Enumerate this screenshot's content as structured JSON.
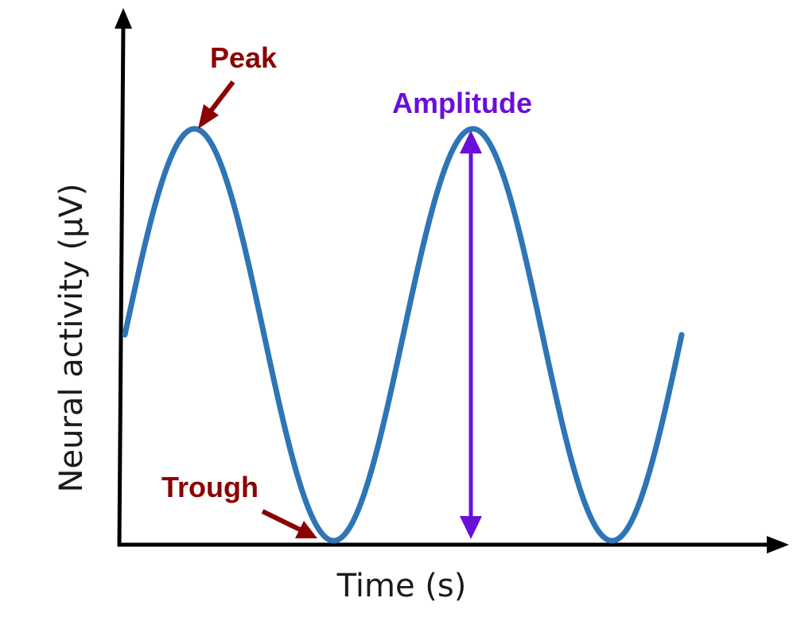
{
  "diagram": {
    "x_axis_label": "Time (s)",
    "y_axis_label": "Neural activity (μV)",
    "waveform": {
      "shape": "sine",
      "cycles": 2,
      "color": "#2e75b6"
    },
    "annotations": {
      "peak": {
        "label": "Peak",
        "color": "#8b0000"
      },
      "trough": {
        "label": "Trough",
        "color": "#8b0000"
      },
      "amplitude": {
        "label": "Amplitude",
        "color": "#6a0fd8"
      }
    },
    "axis_color": "#000000"
  }
}
